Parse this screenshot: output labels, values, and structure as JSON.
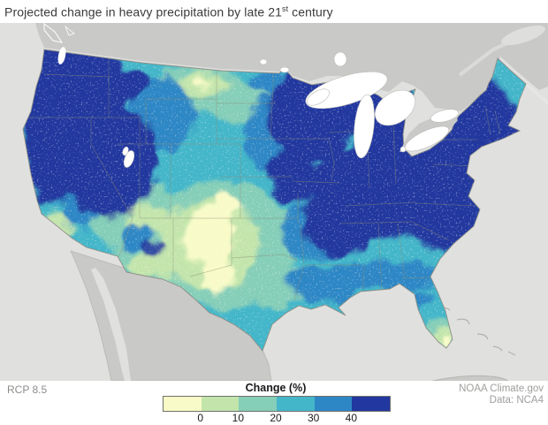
{
  "title": {
    "prefix": "Projected change in heavy precipitation by late 21",
    "superscript": "st",
    "suffix": " century"
  },
  "footer": {
    "scenario_label": "RCP 8.5",
    "credit_line_1": "NOAA Climate.gov",
    "credit_line_2": "Data: NCA4"
  },
  "legend": {
    "title": "Change (%)",
    "ticks": [
      "0",
      "10",
      "20",
      "30",
      "40"
    ],
    "bin_colors": [
      "#f8fbc7",
      "#c3e5ac",
      "#85ceb8",
      "#44b6c9",
      "#2d87c5",
      "#22379f"
    ]
  },
  "map": {
    "region": "Contiguous United States",
    "ocean_color": "#e0e1df",
    "neighbor_land_color": "#c9c9c7",
    "lake_color": "#ffffff",
    "state_border_color": "#8d8d74",
    "coast_outline_color": "#b6b6b4"
  },
  "chart_data": {
    "type": "heatmap",
    "title": "Projected change in heavy precipitation by late 21st century",
    "variable": "Change (%)",
    "scenario": "RCP 8.5",
    "legend_ticks": [
      0,
      10,
      20,
      30,
      40
    ],
    "legend_colors": [
      "#f8fbc7",
      "#c3e5ac",
      "#85ceb8",
      "#44b6c9",
      "#2d87c5",
      "#22379f"
    ],
    "regional_estimates_pct": [
      {
        "region": "Pacific Northwest / Great Basin (WA, OR, N CA, ID, NV, UT)",
        "value": ">40"
      },
      {
        "region": "California coast",
        "value": ">40"
      },
      {
        "region": "Southern California",
        "value": "0-10"
      },
      {
        "region": "Montana / Dakotas",
        "value": "10-20"
      },
      {
        "region": "Wyoming / Colorado",
        "value": "20-30"
      },
      {
        "region": "Southern Plains (E New Mexico, W Texas, Kansas, Oklahoma)",
        "value": "0-10"
      },
      {
        "region": "Texas Gulf Coast",
        "value": "20-30"
      },
      {
        "region": "Upper Midwest / Great Lakes (MN, WI, MI, IL, IN, OH)",
        "value": ">40"
      },
      {
        "region": "Northeast (NY, PA, New England, Mid-Atlantic)",
        "value": ">40"
      },
      {
        "region": "Ohio Valley / Kentucky / Tennessee",
        "value": ">40"
      },
      {
        "region": "Deep South (MS, AL, GA fringe)",
        "value": "30-40"
      },
      {
        "region": "Gulf Coast (LA, coastal MS/AL)",
        "value": "20-30"
      },
      {
        "region": "North Florida",
        "value": "20-30"
      },
      {
        "region": "South Florida",
        "value": "0-10"
      }
    ]
  }
}
